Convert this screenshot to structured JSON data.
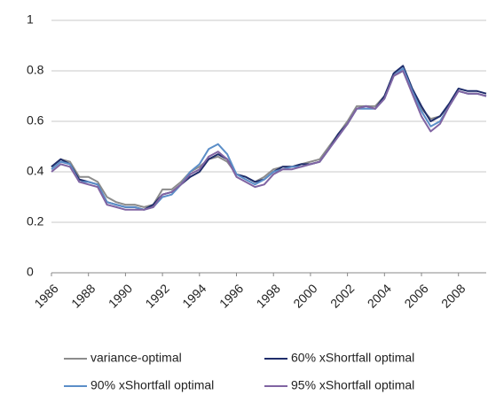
{
  "chart_data": {
    "type": "line",
    "x": [
      1986,
      1986.5,
      1987,
      1987.5,
      1988,
      1988.5,
      1989,
      1989.5,
      1990,
      1990.5,
      1991,
      1991.5,
      1992,
      1992.5,
      1993,
      1993.5,
      1994,
      1994.5,
      1995,
      1995.5,
      1996,
      1996.5,
      1997,
      1997.5,
      1998,
      1998.5,
      1999,
      1999.5,
      2000,
      2000.5,
      2001,
      2001.5,
      2002,
      2002.5,
      2003,
      2003.5,
      2004,
      2004.5,
      2005,
      2005.5,
      2006,
      2006.5,
      2007,
      2007.5,
      2008,
      2008.5,
      2009,
      2009.5
    ],
    "series": [
      {
        "name": "variance-optimal",
        "color": "#8c8c8c",
        "values": [
          0.42,
          0.45,
          0.44,
          0.38,
          0.38,
          0.36,
          0.3,
          0.28,
          0.27,
          0.27,
          0.26,
          0.27,
          0.33,
          0.33,
          0.36,
          0.4,
          0.42,
          0.45,
          0.46,
          0.44,
          0.39,
          0.38,
          0.36,
          0.38,
          0.41,
          0.42,
          0.42,
          0.43,
          0.44,
          0.45,
          0.5,
          0.55,
          0.6,
          0.66,
          0.66,
          0.66,
          0.7,
          0.78,
          0.8,
          0.72,
          0.65,
          0.61,
          0.62,
          0.66,
          0.72,
          0.71,
          0.71,
          0.7
        ]
      },
      {
        "name": "60% xShortfall optimal",
        "color": "#1f2d6b",
        "values": [
          0.42,
          0.45,
          0.43,
          0.37,
          0.36,
          0.35,
          0.28,
          0.27,
          0.26,
          0.26,
          0.25,
          0.27,
          0.31,
          0.32,
          0.35,
          0.38,
          0.4,
          0.45,
          0.47,
          0.45,
          0.39,
          0.38,
          0.36,
          0.37,
          0.4,
          0.42,
          0.42,
          0.43,
          0.43,
          0.44,
          0.49,
          0.55,
          0.59,
          0.65,
          0.66,
          0.65,
          0.7,
          0.79,
          0.82,
          0.73,
          0.66,
          0.6,
          0.62,
          0.67,
          0.73,
          0.72,
          0.72,
          0.71
        ]
      },
      {
        "name": "90% xShortfall optimal",
        "color": "#5b8ec8",
        "values": [
          0.41,
          0.44,
          0.43,
          0.36,
          0.36,
          0.35,
          0.28,
          0.27,
          0.26,
          0.26,
          0.25,
          0.26,
          0.3,
          0.31,
          0.35,
          0.4,
          0.43,
          0.49,
          0.51,
          0.47,
          0.39,
          0.37,
          0.35,
          0.37,
          0.4,
          0.41,
          0.42,
          0.42,
          0.43,
          0.44,
          0.49,
          0.54,
          0.59,
          0.65,
          0.65,
          0.65,
          0.69,
          0.78,
          0.81,
          0.72,
          0.64,
          0.58,
          0.6,
          0.66,
          0.72,
          0.71,
          0.71,
          0.7
        ]
      },
      {
        "name": "95% xShortfall optimal",
        "color": "#8064a2",
        "values": [
          0.4,
          0.43,
          0.42,
          0.36,
          0.35,
          0.34,
          0.27,
          0.26,
          0.25,
          0.25,
          0.25,
          0.26,
          0.31,
          0.32,
          0.35,
          0.39,
          0.41,
          0.46,
          0.48,
          0.45,
          0.38,
          0.36,
          0.34,
          0.35,
          0.39,
          0.41,
          0.41,
          0.42,
          0.43,
          0.44,
          0.49,
          0.54,
          0.59,
          0.65,
          0.66,
          0.65,
          0.69,
          0.78,
          0.8,
          0.71,
          0.62,
          0.56,
          0.59,
          0.66,
          0.72,
          0.71,
          0.71,
          0.7
        ]
      }
    ],
    "xlim": [
      1986,
      2009.5
    ],
    "xticks": [
      1986,
      1988,
      1990,
      1992,
      1994,
      1996,
      1998,
      2000,
      2002,
      2004,
      2006,
      2008
    ],
    "ylim": [
      0,
      1
    ],
    "yticks": [
      0,
      0.2,
      0.4,
      0.6,
      0.8,
      1
    ],
    "grid": true,
    "legend": "bottom"
  }
}
